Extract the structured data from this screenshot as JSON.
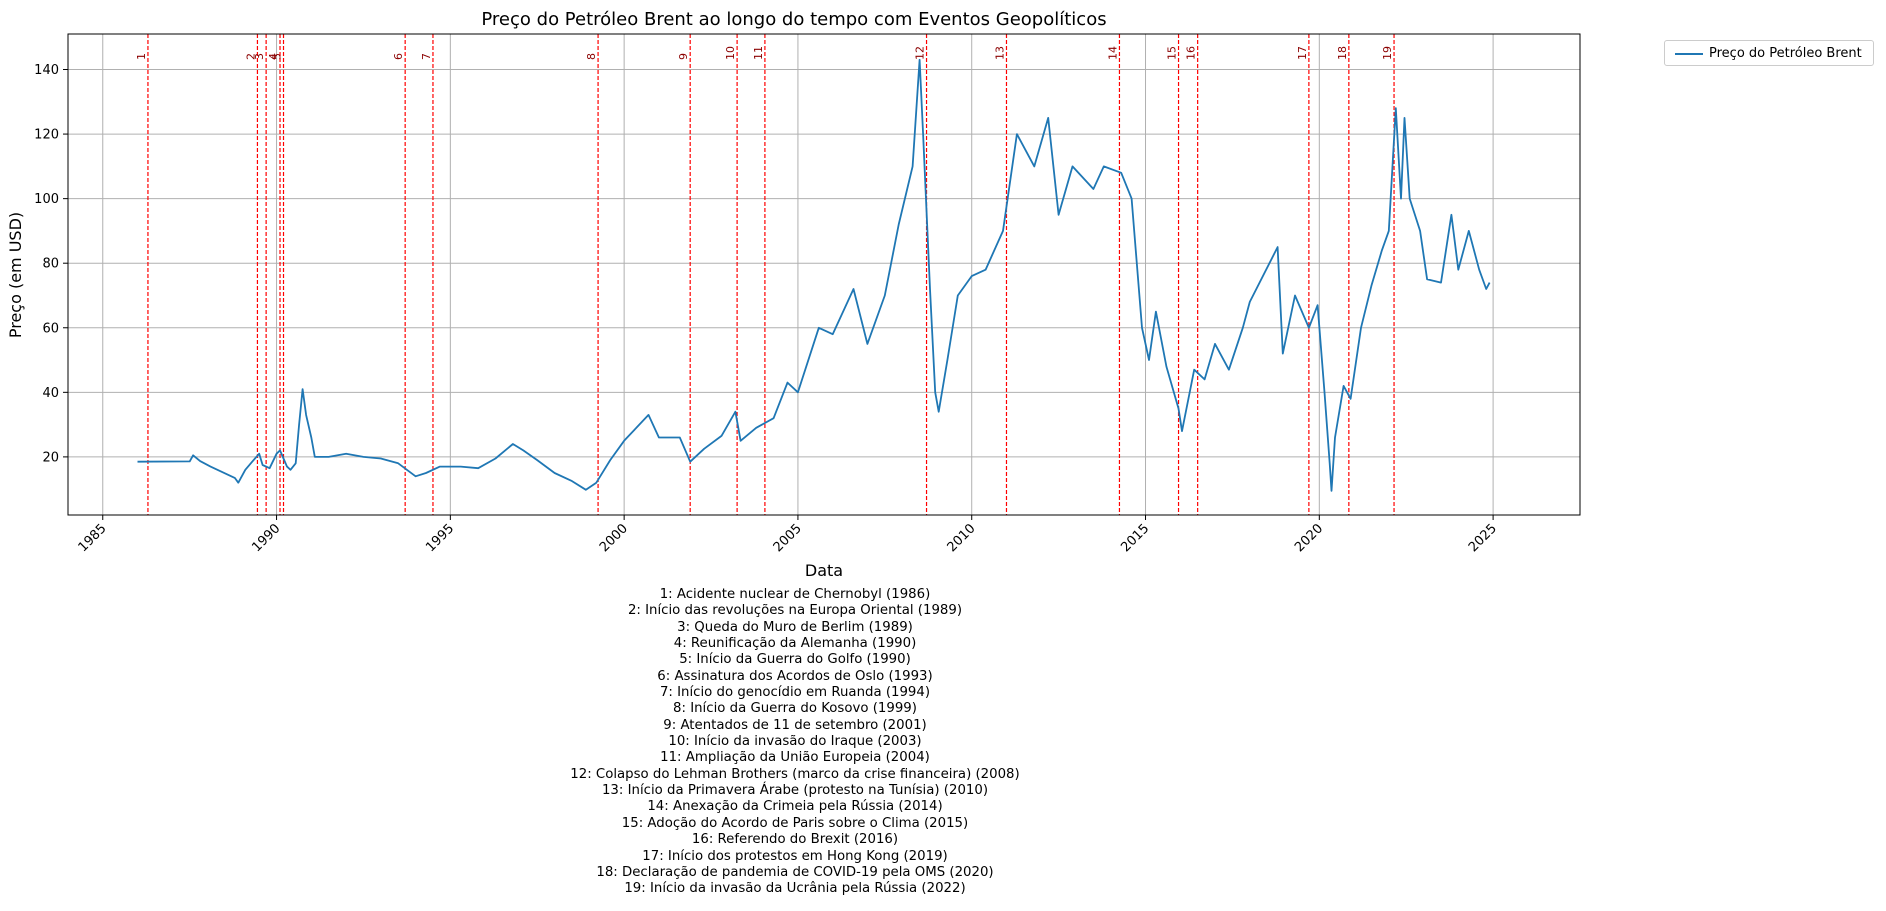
{
  "chart_data": {
    "type": "line",
    "title": "Preço do Petróleo Brent ao longo do tempo com Eventos Geopolíticos",
    "xlabel": "Data",
    "ylabel": "Preço (em USD)",
    "xlim": [
      1984,
      2027.5
    ],
    "ylim": [
      2,
      151
    ],
    "x_ticks": [
      1985,
      1990,
      1995,
      2000,
      2005,
      2010,
      2015,
      2020,
      2025
    ],
    "y_ticks": [
      20,
      40,
      60,
      80,
      100,
      120,
      140
    ],
    "grid": true,
    "legend_placement": "outside-top-right",
    "series": [
      {
        "name": "Preço do Petróleo Brent",
        "color": "#1f77b4",
        "points": [
          [
            1986.0,
            18.5
          ],
          [
            1987.5,
            18.6
          ],
          [
            1987.6,
            20.5
          ],
          [
            1987.8,
            18.7
          ],
          [
            1988.1,
            17
          ],
          [
            1988.4,
            15.5
          ],
          [
            1988.8,
            13.5
          ],
          [
            1988.9,
            12
          ],
          [
            1989.1,
            16
          ],
          [
            1989.3,
            18.5
          ],
          [
            1989.5,
            21
          ],
          [
            1989.6,
            17.5
          ],
          [
            1989.8,
            16.5
          ],
          [
            1990.0,
            21
          ],
          [
            1990.1,
            22
          ],
          [
            1990.3,
            17
          ],
          [
            1990.4,
            16
          ],
          [
            1990.55,
            18
          ],
          [
            1990.65,
            30
          ],
          [
            1990.75,
            41
          ],
          [
            1990.85,
            33
          ],
          [
            1991.0,
            26
          ],
          [
            1991.1,
            20
          ],
          [
            1991.5,
            20
          ],
          [
            1992.0,
            21
          ],
          [
            1992.5,
            20
          ],
          [
            1993.0,
            19.5
          ],
          [
            1993.5,
            18
          ],
          [
            1994.0,
            14
          ],
          [
            1994.3,
            15
          ],
          [
            1994.7,
            17
          ],
          [
            1995.3,
            17
          ],
          [
            1995.8,
            16.5
          ],
          [
            1996.3,
            19.5
          ],
          [
            1996.8,
            24
          ],
          [
            1997.1,
            22
          ],
          [
            1997.5,
            19
          ],
          [
            1998.0,
            15
          ],
          [
            1998.5,
            12.5
          ],
          [
            1998.9,
            9.8
          ],
          [
            1999.2,
            12
          ],
          [
            1999.6,
            19
          ],
          [
            2000.0,
            25
          ],
          [
            2000.7,
            33
          ],
          [
            2001.0,
            26
          ],
          [
            2001.6,
            26
          ],
          [
            2001.9,
            18.5
          ],
          [
            2002.3,
            22.5
          ],
          [
            2002.8,
            26.5
          ],
          [
            2003.2,
            34
          ],
          [
            2003.35,
            25
          ],
          [
            2003.8,
            29
          ],
          [
            2004.3,
            32
          ],
          [
            2004.7,
            43
          ],
          [
            2005.0,
            40
          ],
          [
            2005.6,
            60
          ],
          [
            2006.0,
            58
          ],
          [
            2006.6,
            72
          ],
          [
            2007.0,
            55
          ],
          [
            2007.5,
            70
          ],
          [
            2007.9,
            92
          ],
          [
            2008.3,
            110
          ],
          [
            2008.5,
            143
          ],
          [
            2008.6,
            120
          ],
          [
            2008.8,
            72
          ],
          [
            2008.95,
            40
          ],
          [
            2009.05,
            34
          ],
          [
            2009.3,
            50
          ],
          [
            2009.6,
            70
          ],
          [
            2010.0,
            76
          ],
          [
            2010.4,
            78
          ],
          [
            2010.9,
            90
          ],
          [
            2011.3,
            120
          ],
          [
            2011.8,
            110
          ],
          [
            2012.2,
            125
          ],
          [
            2012.5,
            95
          ],
          [
            2012.9,
            110
          ],
          [
            2013.5,
            103
          ],
          [
            2013.8,
            110
          ],
          [
            2014.3,
            108
          ],
          [
            2014.6,
            100
          ],
          [
            2014.9,
            60
          ],
          [
            2015.1,
            50
          ],
          [
            2015.3,
            65
          ],
          [
            2015.6,
            48
          ],
          [
            2015.95,
            35
          ],
          [
            2016.05,
            28
          ],
          [
            2016.4,
            47
          ],
          [
            2016.7,
            44
          ],
          [
            2017.0,
            55
          ],
          [
            2017.4,
            47
          ],
          [
            2017.8,
            60
          ],
          [
            2018.0,
            68
          ],
          [
            2018.8,
            85
          ],
          [
            2018.95,
            52
          ],
          [
            2019.3,
            70
          ],
          [
            2019.7,
            60
          ],
          [
            2019.95,
            67
          ],
          [
            2020.15,
            40
          ],
          [
            2020.3,
            18
          ],
          [
            2020.35,
            9.5
          ],
          [
            2020.45,
            26
          ],
          [
            2020.7,
            42
          ],
          [
            2020.9,
            38
          ],
          [
            2021.2,
            60
          ],
          [
            2021.5,
            73
          ],
          [
            2021.8,
            84
          ],
          [
            2022.0,
            90
          ],
          [
            2022.2,
            128
          ],
          [
            2022.35,
            100
          ],
          [
            2022.45,
            125
          ],
          [
            2022.6,
            100
          ],
          [
            2022.9,
            90
          ],
          [
            2023.1,
            75
          ],
          [
            2023.5,
            74
          ],
          [
            2023.8,
            95
          ],
          [
            2024.0,
            78
          ],
          [
            2024.3,
            90
          ],
          [
            2024.6,
            78
          ],
          [
            2024.8,
            72
          ],
          [
            2024.9,
            74
          ]
        ]
      }
    ],
    "event_lines": [
      {
        "label": "1",
        "x": 1986.3
      },
      {
        "label": "2",
        "x": 1989.45
      },
      {
        "label": "3",
        "x": 1989.7
      },
      {
        "label": "4",
        "x": 1990.1
      },
      {
        "label": "5",
        "x": 1990.2
      },
      {
        "label": "6",
        "x": 1993.7
      },
      {
        "label": "7",
        "x": 1994.5
      },
      {
        "label": "8",
        "x": 1999.25
      },
      {
        "label": "9",
        "x": 2001.9
      },
      {
        "label": "10",
        "x": 2003.25
      },
      {
        "label": "11",
        "x": 2004.05
      },
      {
        "label": "12",
        "x": 2008.7
      },
      {
        "label": "13",
        "x": 2011.0
      },
      {
        "label": "14",
        "x": 2014.25
      },
      {
        "label": "15",
        "x": 2015.95
      },
      {
        "label": "16",
        "x": 2016.5
      },
      {
        "label": "17",
        "x": 2019.7
      },
      {
        "label": "18",
        "x": 2020.85
      },
      {
        "label": "19",
        "x": 2022.15
      }
    ],
    "event_line_color": "#ff0000",
    "event_label_color": "#8b0000"
  },
  "legend": {
    "label": "Preço do Petróleo Brent"
  },
  "events_list": [
    "1: Acidente nuclear de Chernobyl (1986)",
    "2: Início das revoluções na Europa Oriental (1989)",
    "3: Queda do Muro de Berlim (1989)",
    "4: Reunificação da Alemanha (1990)",
    "5: Início da Guerra do Golfo (1990)",
    "6: Assinatura dos Acordos de Oslo (1993)",
    "7: Início do genocídio em Ruanda (1994)",
    "8: Início da Guerra do Kosovo (1999)",
    "9: Atentados de 11 de setembro (2001)",
    "10: Início da invasão do Iraque (2003)",
    "11: Ampliação da União Europeia (2004)",
    "12: Colapso do Lehman Brothers (marco da crise financeira) (2008)",
    "13: Início da Primavera Árabe (protesto na Tunísia) (2010)",
    "14: Anexação da Crimeia pela Rússia (2014)",
    "15: Adoção do Acordo de Paris sobre o Clima (2015)",
    "16: Referendo do Brexit (2016)",
    "17: Início dos protestos em Hong Kong (2019)",
    "18: Declaração de pandemia de COVID-19 pela OMS (2020)",
    "19: Início da invasão da Ucrânia pela Rússia (2022)"
  ]
}
